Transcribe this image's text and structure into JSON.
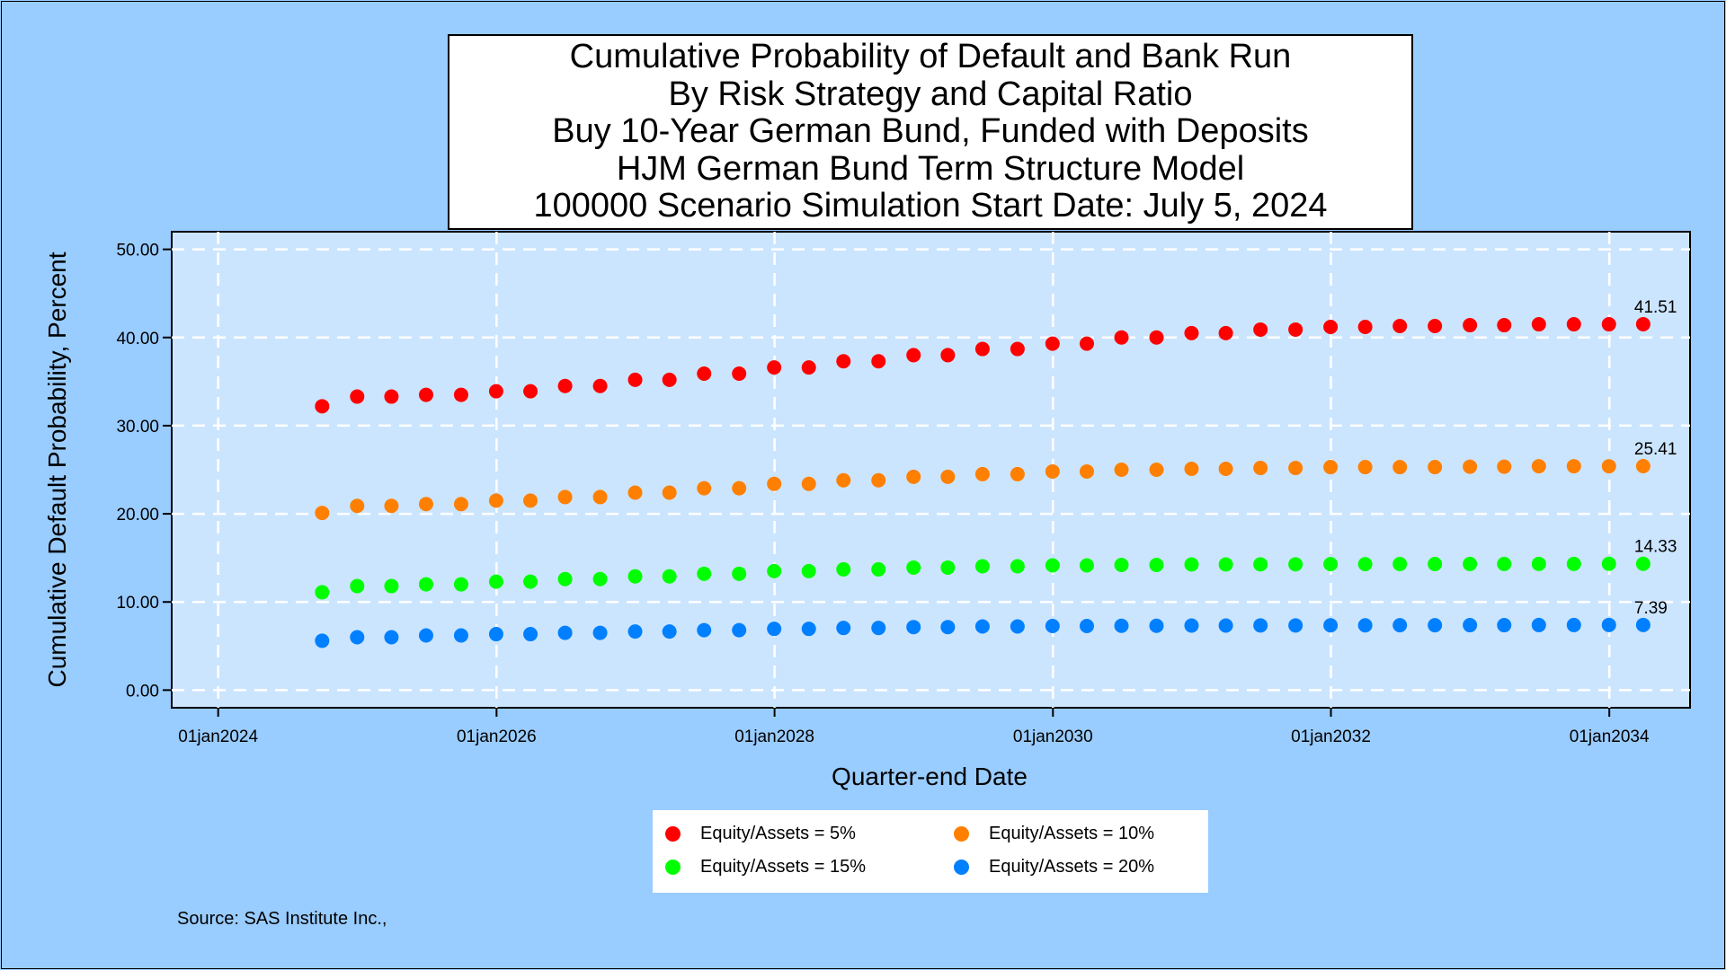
{
  "source_note": "Source: SAS Institute Inc.,",
  "chart_data": {
    "type": "scatter",
    "title_lines": [
      "Cumulative Probability of Default and Bank Run",
      "By Risk Strategy and Capital Ratio",
      "Buy 10-Year German Bund, Funded with Deposits",
      "HJM German Bund Term Structure Model",
      "100000 Scenario Simulation Start Date: July 5, 2024"
    ],
    "xlabel": "Quarter-end Date",
    "ylabel": "Cumulative Default Probability, Percent",
    "x_ticks": [
      "01jan2024",
      "01jan2026",
      "01jan2028",
      "01jan2030",
      "01jan2032",
      "01jan2034"
    ],
    "y_ticks": [
      "0.00",
      "10.00",
      "20.00",
      "30.00",
      "40.00",
      "50.00"
    ],
    "xlim": [
      "2023-09-01",
      "2034-08-01"
    ],
    "ylim": [
      -2,
      52
    ],
    "grid": true,
    "legend_position": "bottom",
    "x": [
      "2024-09-30",
      "2024-12-31",
      "2025-03-31",
      "2025-06-30",
      "2025-09-30",
      "2025-12-31",
      "2026-03-31",
      "2026-06-30",
      "2026-09-30",
      "2026-12-31",
      "2027-03-31",
      "2027-06-30",
      "2027-09-30",
      "2027-12-31",
      "2028-03-31",
      "2028-06-30",
      "2028-09-30",
      "2028-12-31",
      "2029-03-31",
      "2029-06-30",
      "2029-09-30",
      "2029-12-31",
      "2030-03-31",
      "2030-06-30",
      "2030-09-30",
      "2030-12-31",
      "2031-03-31",
      "2031-06-30",
      "2031-09-30",
      "2031-12-31",
      "2032-03-31",
      "2032-06-30",
      "2032-09-30",
      "2032-12-31",
      "2033-03-31",
      "2033-06-30",
      "2033-09-30",
      "2033-12-31",
      "2034-03-31"
    ],
    "series": [
      {
        "name": "Equity/Assets = 5%",
        "color": "#ff0000",
        "end_label": "41.51",
        "values": [
          32.2,
          33.3,
          33.3,
          33.5,
          33.5,
          33.9,
          33.9,
          34.5,
          34.5,
          35.2,
          35.2,
          35.9,
          35.9,
          36.6,
          36.6,
          37.3,
          37.3,
          38.0,
          38.0,
          38.7,
          38.7,
          39.3,
          39.3,
          40.0,
          40.0,
          40.5,
          40.5,
          40.9,
          40.9,
          41.2,
          41.2,
          41.3,
          41.3,
          41.4,
          41.4,
          41.5,
          41.5,
          41.5,
          41.51
        ]
      },
      {
        "name": "Equity/Assets = 10%",
        "color": "#ff8000",
        "end_label": "25.41",
        "values": [
          20.1,
          20.9,
          20.9,
          21.1,
          21.1,
          21.5,
          21.5,
          21.9,
          21.9,
          22.4,
          22.4,
          22.9,
          22.9,
          23.4,
          23.4,
          23.8,
          23.8,
          24.2,
          24.2,
          24.5,
          24.5,
          24.8,
          24.8,
          25.0,
          25.0,
          25.1,
          25.1,
          25.2,
          25.2,
          25.3,
          25.3,
          25.3,
          25.3,
          25.35,
          25.35,
          25.4,
          25.4,
          25.4,
          25.41
        ]
      },
      {
        "name": "Equity/Assets = 15%",
        "color": "#00ff00",
        "end_label": "14.33",
        "values": [
          11.1,
          11.8,
          11.8,
          12.0,
          12.0,
          12.3,
          12.3,
          12.6,
          12.6,
          12.9,
          12.9,
          13.2,
          13.2,
          13.5,
          13.5,
          13.7,
          13.7,
          13.9,
          13.9,
          14.05,
          14.05,
          14.15,
          14.15,
          14.2,
          14.2,
          14.25,
          14.25,
          14.27,
          14.27,
          14.29,
          14.29,
          14.3,
          14.3,
          14.31,
          14.31,
          14.32,
          14.32,
          14.33,
          14.33
        ]
      },
      {
        "name": "Equity/Assets = 20%",
        "color": "#0080ff",
        "end_label": "7.39",
        "values": [
          5.6,
          6.0,
          6.0,
          6.2,
          6.2,
          6.35,
          6.35,
          6.5,
          6.5,
          6.65,
          6.65,
          6.8,
          6.8,
          6.95,
          6.95,
          7.05,
          7.05,
          7.15,
          7.15,
          7.22,
          7.22,
          7.27,
          7.27,
          7.3,
          7.3,
          7.32,
          7.32,
          7.34,
          7.34,
          7.35,
          7.35,
          7.36,
          7.36,
          7.37,
          7.37,
          7.38,
          7.38,
          7.39,
          7.39
        ]
      }
    ]
  }
}
